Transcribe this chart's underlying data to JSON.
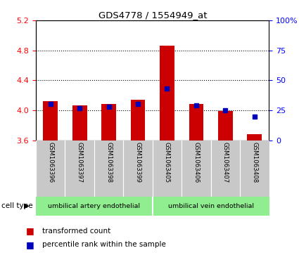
{
  "title": "GDS4778 / 1554949_at",
  "samples": [
    "GSM1063396",
    "GSM1063397",
    "GSM1063398",
    "GSM1063399",
    "GSM1063405",
    "GSM1063406",
    "GSM1063407",
    "GSM1063408"
  ],
  "transformed_counts": [
    4.12,
    4.07,
    4.08,
    4.14,
    4.86,
    4.08,
    3.99,
    3.68
  ],
  "percentile_ranks": [
    30,
    27,
    28,
    30,
    43,
    29,
    25,
    20
  ],
  "ylim_left": [
    3.6,
    5.2
  ],
  "ylim_right": [
    0,
    100
  ],
  "yticks_left": [
    3.6,
    4.0,
    4.4,
    4.8,
    5.2
  ],
  "yticks_right": [
    0,
    25,
    50,
    75,
    100
  ],
  "bar_color": "#CC0000",
  "marker_color": "#0000BB",
  "bar_width": 0.5,
  "cell_type_bg": "#90EE90",
  "sample_bg": "#C8C8C8",
  "gridline_values": [
    4.0,
    4.4,
    4.8
  ],
  "cell_type_labels": [
    "umbilical artery endothelial",
    "umbilical vein endothelial"
  ],
  "cell_type_split": 3.5,
  "legend_items": [
    "transformed count",
    "percentile rank within the sample"
  ],
  "cell_type_text": "cell type"
}
